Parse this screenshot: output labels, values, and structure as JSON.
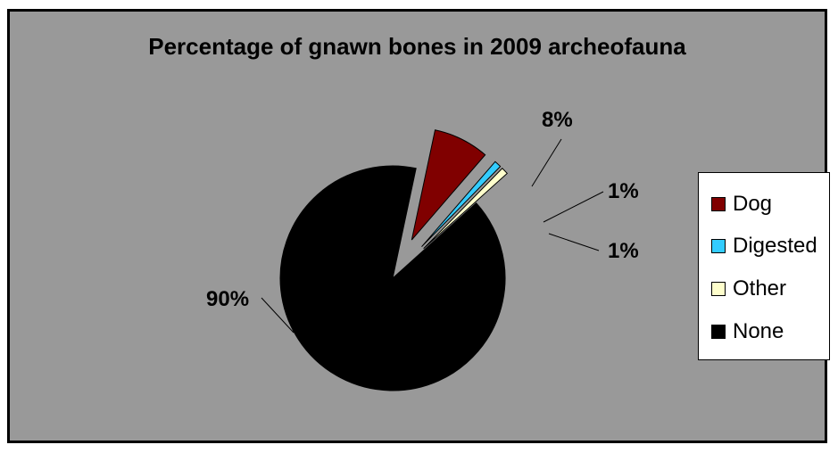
{
  "chart_data": {
    "type": "pie",
    "title": "Percentage of gnawn bones in 2009 archeofauna",
    "categories": [
      "Dog",
      "Digested",
      "Other",
      "None"
    ],
    "values": [
      8,
      1,
      1,
      90
    ],
    "data_labels": [
      "8%",
      "1%",
      "1%",
      "90%"
    ],
    "colors": [
      "#800000",
      "#33ccff",
      "#ffffcc",
      "#000000"
    ],
    "background_color": "#999999",
    "exploded_slices": [
      "Dog",
      "Digested",
      "Other"
    ],
    "legend": {
      "position": "right",
      "entries": [
        "Dog",
        "Digested",
        "Other",
        "None"
      ]
    }
  }
}
